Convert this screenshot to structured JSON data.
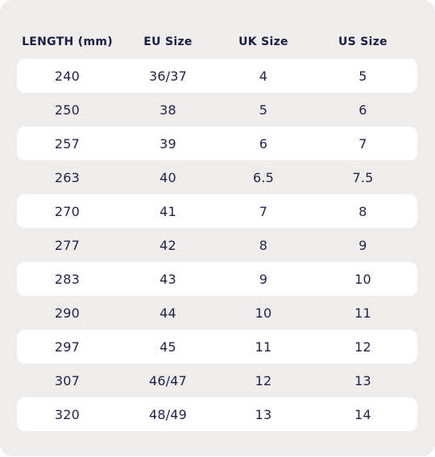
{
  "table": {
    "headers": [
      "LENGTH (mm)",
      "EU Size",
      "UK Size",
      "US Size"
    ],
    "rows": [
      [
        "240",
        "36/37",
        "4",
        "5"
      ],
      [
        "250",
        "38",
        "5",
        "6"
      ],
      [
        "257",
        "39",
        "6",
        "7"
      ],
      [
        "263",
        "40",
        "6.5",
        "7.5"
      ],
      [
        "270",
        "41",
        "7",
        "8"
      ],
      [
        "277",
        "42",
        "8",
        "9"
      ],
      [
        "283",
        "43",
        "9",
        "10"
      ],
      [
        "290",
        "44",
        "10",
        "11"
      ],
      [
        "297",
        "45",
        "11",
        "12"
      ],
      [
        "307",
        "46/47",
        "12",
        "13"
      ],
      [
        "320",
        "48/49",
        "13",
        "14"
      ]
    ]
  },
  "colors": {
    "card_background": "#efedeb",
    "stripe_background": "#ffffff",
    "text": "#1e2249"
  }
}
